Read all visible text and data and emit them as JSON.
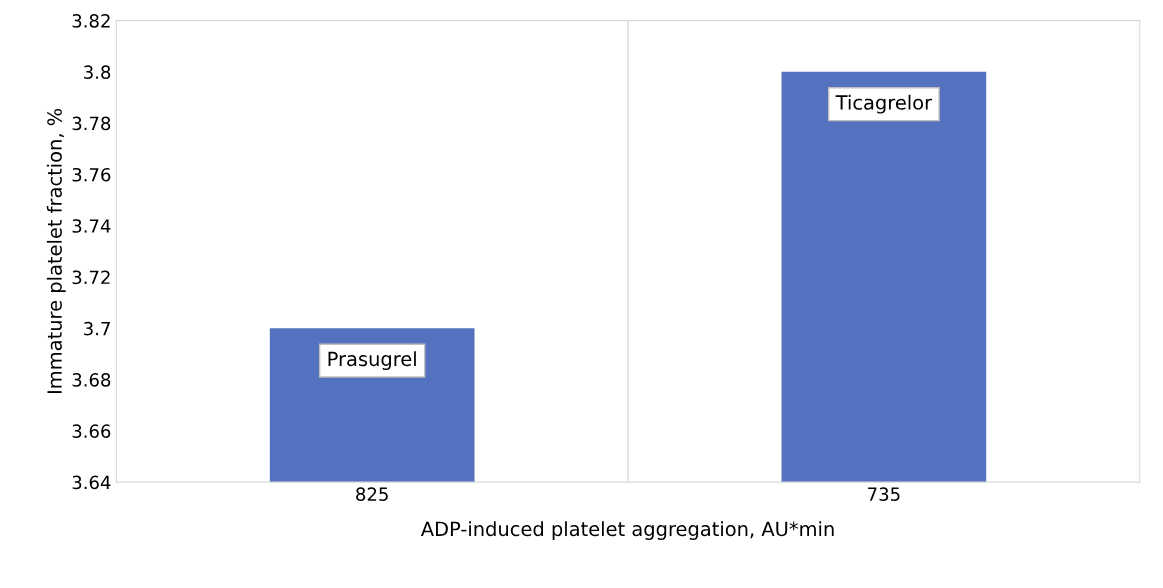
{
  "chart_data": {
    "type": "bar",
    "xlabel": "ADP-induced platelet aggregation, AU*min",
    "ylabel": "Immature platelet fraction, %",
    "categories": [
      "825",
      "735"
    ],
    "values": [
      3.7,
      3.8
    ],
    "color": "#5572c0",
    "ylim": [
      3.64,
      3.82
    ],
    "yticks": [
      3.64,
      3.66,
      3.68,
      3.7,
      3.72,
      3.74,
      3.76,
      3.78,
      3.8,
      3.82
    ],
    "grid": "x",
    "annotations": [
      {
        "text": "Prasugrel",
        "x": "825",
        "y": 3.7
      },
      {
        "text": "Ticagrelor",
        "x": "735",
        "y": 3.8
      }
    ]
  }
}
